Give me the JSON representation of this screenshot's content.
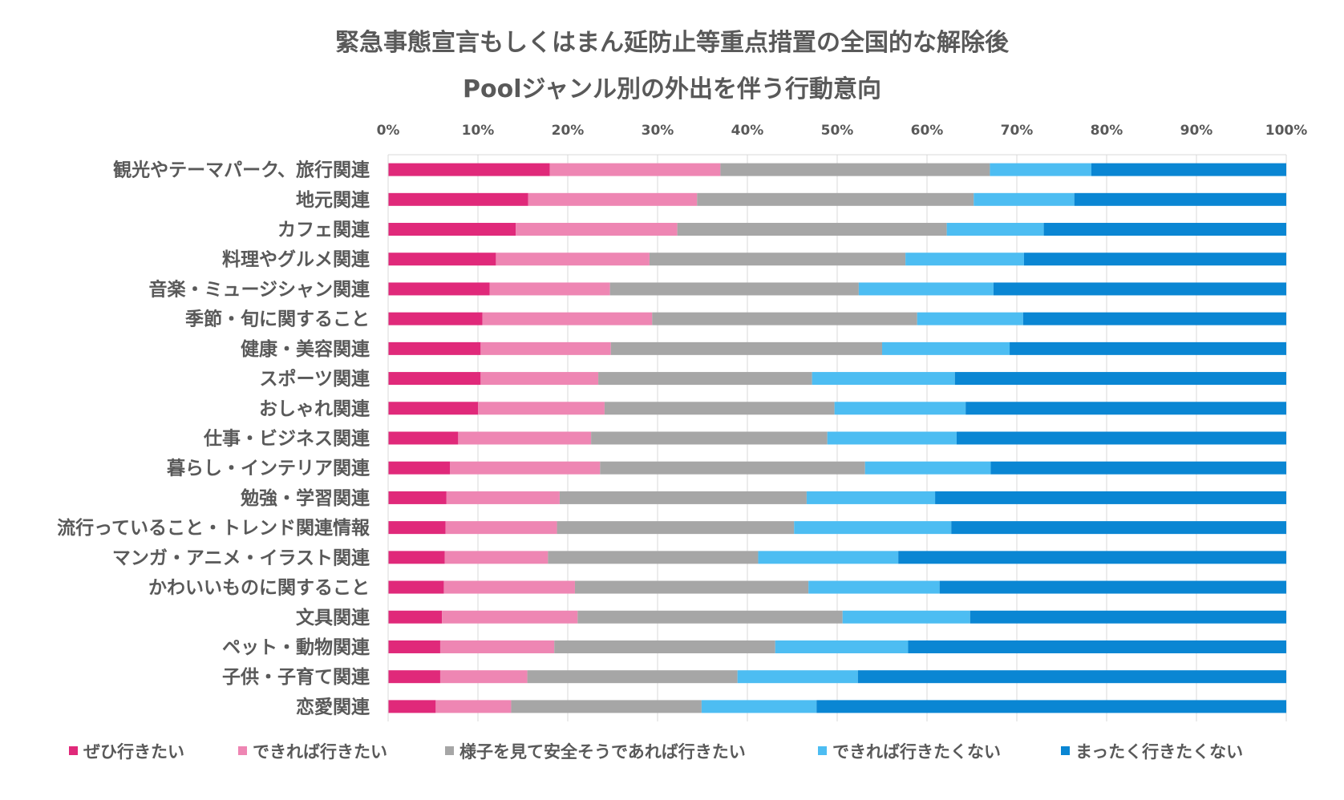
{
  "chart_data": {
    "type": "bar",
    "orientation": "horizontal",
    "stacked": "percent",
    "title": "緊急事態宣言もしくはまん延防止等重点措置の全国的な解除後",
    "subtitle": "Poolジャンル別の外出を伴う行動意向",
    "xlim": [
      0,
      100
    ],
    "x_ticks": [
      "0%",
      "10%",
      "20%",
      "30%",
      "40%",
      "50%",
      "60%",
      "70%",
      "80%",
      "90%",
      "100%"
    ],
    "x_axis_position": "top",
    "grid": true,
    "legend_position": "bottom",
    "categories": [
      "観光やテーマパーク、旅行関連",
      "地元関連",
      "カフェ関連",
      "料理やグルメ関連",
      "音楽・ミュージシャン関連",
      "季節・旬に関すること",
      "健康・美容関連",
      "スポーツ関連",
      "おしゃれ関連",
      "仕事・ビジネス関連",
      "暮らし・インテリア関連",
      "勉強・学習関連",
      "流行っていること・トレンド関連情報",
      "マンガ・アニメ・イラスト関連",
      "かわいいものに関すること",
      "文具関連",
      "ペット・動物関連",
      "子供・子育て関連",
      "恋愛関連"
    ],
    "series": [
      {
        "name": "ぜひ行きたい",
        "color": "#E0297A",
        "values": [
          18.0,
          15.6,
          14.2,
          12.0,
          11.3,
          10.5,
          10.3,
          10.3,
          10.0,
          7.8,
          6.9,
          6.5,
          6.4,
          6.3,
          6.2,
          6.0,
          5.8,
          5.8,
          5.3
        ]
      },
      {
        "name": "できれば行きたい",
        "color": "#EE86B3",
        "values": [
          19.0,
          18.8,
          18.0,
          17.1,
          13.4,
          18.9,
          14.5,
          13.1,
          14.1,
          14.8,
          16.7,
          12.6,
          12.4,
          11.5,
          14.6,
          15.1,
          12.7,
          9.7,
          8.4
        ]
      },
      {
        "name": "様子を見て安全そうであれば行きたい",
        "color": "#A6A6A6",
        "values": [
          30.0,
          30.8,
          30.0,
          28.5,
          27.7,
          29.5,
          30.2,
          23.8,
          25.6,
          26.3,
          29.5,
          27.5,
          26.4,
          23.4,
          26.0,
          29.5,
          24.6,
          23.4,
          21.2
        ]
      },
      {
        "name": "できれば行きたくない",
        "color": "#4DBDF2",
        "values": [
          11.3,
          11.2,
          10.8,
          13.2,
          15.0,
          11.8,
          14.2,
          15.9,
          14.6,
          14.4,
          14.0,
          14.3,
          17.5,
          15.6,
          14.6,
          14.2,
          14.8,
          13.4,
          12.8
        ]
      },
      {
        "name": "まったく行きたくない",
        "color": "#0A86D3",
        "values": [
          21.7,
          23.6,
          27.0,
          29.2,
          32.6,
          29.3,
          30.8,
          36.9,
          35.7,
          36.7,
          32.9,
          39.1,
          37.3,
          43.2,
          38.6,
          35.2,
          42.1,
          47.7,
          52.3
        ]
      }
    ]
  }
}
